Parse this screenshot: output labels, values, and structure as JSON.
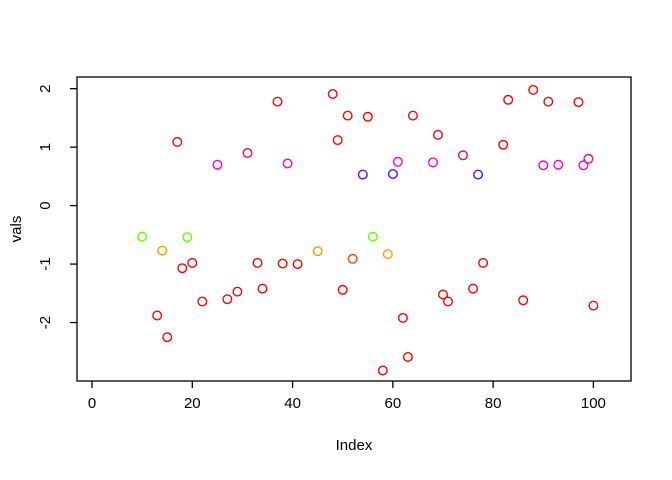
{
  "figure": {
    "title": "",
    "xlabel": "Index",
    "ylabel": "vals"
  },
  "chart_data": {
    "type": "scatter",
    "title": "",
    "xlabel": "Index",
    "ylabel": "vals",
    "xlim": [
      -3,
      107
    ],
    "ylim": [
      -3.0,
      2.2
    ],
    "x_tick_values": [
      0,
      20,
      40,
      60,
      80,
      100
    ],
    "y_tick_values": [
      -2,
      -1,
      0,
      1,
      2
    ],
    "grid": false,
    "legend": "none",
    "marker": "open-circle",
    "marker_colors": {
      "red": "#FF0000",
      "orange": "#FF9900",
      "orange_red": "#FF4400",
      "green": "#66FF00",
      "violet": "#6600FF",
      "magenta": "#FF00CC",
      "magenta_pink": "#FF0099",
      "pink": "#FF0066"
    },
    "points": [
      {
        "x": 10,
        "y": -0.53,
        "color": "#66FF00"
      },
      {
        "x": 13,
        "y": -1.88,
        "color": "#FF0000"
      },
      {
        "x": 14,
        "y": -0.77,
        "color": "#FF9900"
      },
      {
        "x": 15,
        "y": -2.25,
        "color": "#FF0000"
      },
      {
        "x": 17,
        "y": 1.09,
        "color": "#FF0000"
      },
      {
        "x": 18,
        "y": -1.07,
        "color": "#FF0000"
      },
      {
        "x": 19,
        "y": -0.54,
        "color": "#66FF00"
      },
      {
        "x": 20,
        "y": -0.98,
        "color": "#FF0000"
      },
      {
        "x": 22,
        "y": -1.64,
        "color": "#FF0000"
      },
      {
        "x": 25,
        "y": 0.7,
        "color": "#FF00CC"
      },
      {
        "x": 27,
        "y": -1.6,
        "color": "#FF0000"
      },
      {
        "x": 29,
        "y": -1.47,
        "color": "#FF0000"
      },
      {
        "x": 31,
        "y": 0.9,
        "color": "#FF0066"
      },
      {
        "x": 33,
        "y": -0.98,
        "color": "#FF0000"
      },
      {
        "x": 34,
        "y": -1.42,
        "color": "#FF0000"
      },
      {
        "x": 37,
        "y": 1.78,
        "color": "#FF0000"
      },
      {
        "x": 38,
        "y": -0.99,
        "color": "#FF0000"
      },
      {
        "x": 39,
        "y": 0.72,
        "color": "#FF00CC"
      },
      {
        "x": 41,
        "y": -1.0,
        "color": "#FF0000"
      },
      {
        "x": 45,
        "y": -0.78,
        "color": "#FF9900"
      },
      {
        "x": 48,
        "y": 1.91,
        "color": "#FF0000"
      },
      {
        "x": 49,
        "y": 1.12,
        "color": "#FF0000"
      },
      {
        "x": 50,
        "y": -1.44,
        "color": "#FF0000"
      },
      {
        "x": 51,
        "y": 1.54,
        "color": "#FF0000"
      },
      {
        "x": 52,
        "y": -0.91,
        "color": "#FF4400"
      },
      {
        "x": 54,
        "y": 0.53,
        "color": "#6600FF"
      },
      {
        "x": 55,
        "y": 1.52,
        "color": "#FF0000"
      },
      {
        "x": 56,
        "y": -0.53,
        "color": "#66FF00"
      },
      {
        "x": 58,
        "y": -2.82,
        "color": "#FF0000"
      },
      {
        "x": 59,
        "y": -0.83,
        "color": "#FF9900"
      },
      {
        "x": 60,
        "y": 0.54,
        "color": "#6600FF"
      },
      {
        "x": 61,
        "y": 0.75,
        "color": "#FF00CC"
      },
      {
        "x": 62,
        "y": -1.92,
        "color": "#FF0000"
      },
      {
        "x": 63,
        "y": -2.59,
        "color": "#FF0000"
      },
      {
        "x": 64,
        "y": 1.54,
        "color": "#FF0000"
      },
      {
        "x": 68,
        "y": 0.74,
        "color": "#FF00CC"
      },
      {
        "x": 69,
        "y": 1.21,
        "color": "#FF0000"
      },
      {
        "x": 70,
        "y": -1.52,
        "color": "#FF0000"
      },
      {
        "x": 71,
        "y": -1.64,
        "color": "#FF0000"
      },
      {
        "x": 74,
        "y": 0.86,
        "color": "#FF0066"
      },
      {
        "x": 76,
        "y": -1.42,
        "color": "#FF0000"
      },
      {
        "x": 77,
        "y": 0.53,
        "color": "#6600FF"
      },
      {
        "x": 78,
        "y": -0.98,
        "color": "#FF0000"
      },
      {
        "x": 82,
        "y": 1.04,
        "color": "#FF0000"
      },
      {
        "x": 83,
        "y": 1.81,
        "color": "#FF0000"
      },
      {
        "x": 86,
        "y": -1.62,
        "color": "#FF0000"
      },
      {
        "x": 88,
        "y": 1.98,
        "color": "#FF0000"
      },
      {
        "x": 90,
        "y": 0.69,
        "color": "#FF00CC"
      },
      {
        "x": 91,
        "y": 1.78,
        "color": "#FF0000"
      },
      {
        "x": 93,
        "y": 0.7,
        "color": "#FF00CC"
      },
      {
        "x": 97,
        "y": 1.77,
        "color": "#FF0000"
      },
      {
        "x": 98,
        "y": 0.69,
        "color": "#FF00CC"
      },
      {
        "x": 99,
        "y": 0.8,
        "color": "#FF0099"
      },
      {
        "x": 100,
        "y": -1.71,
        "color": "#FF0000"
      }
    ]
  }
}
